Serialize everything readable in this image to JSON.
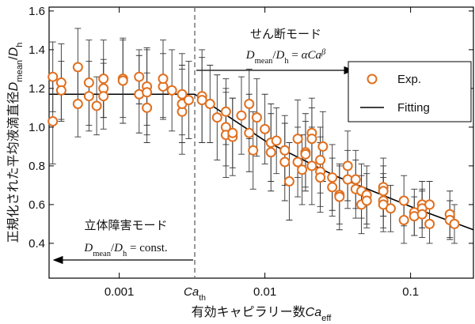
{
  "chart_data": {
    "type": "scatter",
    "xscale": "log",
    "xlim": [
      0.00033,
      0.27
    ],
    "xticks": [
      0.001,
      0.01,
      0.1
    ],
    "ylim": [
      0.22,
      1.62
    ],
    "yticks": [
      0.4,
      0.6,
      0.8,
      {
        "value": 1,
        "label": "1.0"
      },
      1.2,
      1.4,
      1.6
    ],
    "x_label": [
      {
        "t": "有効キャピラリー数"
      },
      {
        "t": "Ca",
        "italic": true
      },
      {
        "t": "eff",
        "sub": true
      }
    ],
    "y_label": [
      {
        "t": "正規化された平均液滴直径"
      },
      {
        "t": "D",
        "italic": true
      },
      {
        "t": "mean",
        "sub": true
      },
      {
        "t": "/"
      },
      {
        "t": "D",
        "italic": true
      },
      {
        "t": "h",
        "sub": true
      }
    ],
    "threshold": {
      "value": 0.0033,
      "label": [
        {
          "t": "Ca",
          "italic": true
        },
        {
          "t": "th",
          "sub": true
        }
      ]
    },
    "annotations": [
      {
        "text": "せん断モード",
        "formula": [
          {
            "t": "D",
            "italic": true
          },
          {
            "t": "mean",
            "sub": true
          },
          {
            "t": "/"
          },
          {
            "t": "D",
            "italic": true
          },
          {
            "t": "h",
            "sub": true
          },
          {
            "t": " = "
          },
          {
            "t": "αCa",
            "italic": true
          },
          {
            "t": "β",
            "sup": true,
            "italic": true
          }
        ],
        "arrow": "right"
      },
      {
        "text": "立体障害モード",
        "formula": [
          {
            "t": "D",
            "italic": true
          },
          {
            "t": "mean",
            "sub": true
          },
          {
            "t": "/"
          },
          {
            "t": "D",
            "italic": true
          },
          {
            "t": "h",
            "sub": true
          },
          {
            "t": " = const."
          }
        ],
        "arrow": "left"
      }
    ],
    "legend": "upper right",
    "series": [
      {
        "name": "Exp.",
        "kind": "points",
        "color": "#e07020",
        "x": [
          0.00035,
          0.00035,
          0.0004,
          0.0004,
          0.00052,
          0.00052,
          0.00062,
          0.00062,
          0.0007,
          0.00078,
          0.00078,
          0.00078,
          0.00106,
          0.00106,
          0.00137,
          0.00137,
          0.00155,
          0.00155,
          0.00155,
          0.002,
          0.002,
          0.0023,
          0.0027,
          0.0027,
          0.0027,
          0.003,
          0.0037,
          0.0037,
          0.0042,
          0.0047,
          0.0054,
          0.0054,
          0.0054,
          0.006,
          0.006,
          0.0069,
          0.0078,
          0.0078,
          0.0083,
          0.0088,
          0.01,
          0.011,
          0.011,
          0.012,
          0.0137,
          0.0137,
          0.0147,
          0.0168,
          0.0168,
          0.018,
          0.019,
          0.019,
          0.021,
          0.021,
          0.021,
          0.024,
          0.024,
          0.024,
          0.025,
          0.029,
          0.029,
          0.0325,
          0.0325,
          0.037,
          0.037,
          0.042,
          0.042,
          0.046,
          0.046,
          0.05,
          0.05,
          0.065,
          0.065,
          0.065,
          0.065,
          0.073,
          0.09,
          0.09,
          0.106,
          0.106,
          0.12,
          0.12,
          0.12,
          0.135,
          0.135,
          0.186,
          0.186,
          0.2
        ],
        "values": [
          1.26,
          1.03,
          1.23,
          1.19,
          1.31,
          1.12,
          1.23,
          1.16,
          1.11,
          1.25,
          1.2,
          1.16,
          1.25,
          1.24,
          1.17,
          1.26,
          1.21,
          1.18,
          1.1,
          1.21,
          1.25,
          1.19,
          1.17,
          1.08,
          1.12,
          1.14,
          1.16,
          1.14,
          1.12,
          1.05,
          1,
          0.96,
          1.08,
          0.95,
          0.97,
          1.06,
          0.97,
          1.12,
          0.88,
          1.05,
          0.99,
          0.92,
          0.87,
          0.93,
          0.88,
          0.82,
          0.72,
          0.82,
          0.94,
          0.78,
          0.87,
          0.86,
          0.97,
          0.94,
          0.8,
          0.83,
          0.77,
          0.74,
          0.9,
          0.69,
          0.74,
          0.65,
          0.64,
          0.8,
          0.73,
          0.73,
          0.68,
          0.67,
          0.6,
          0.65,
          0.62,
          0.69,
          0.62,
          0.67,
          0.6,
          0.58,
          0.62,
          0.52,
          0.56,
          0.54,
          0.6,
          0.58,
          0.55,
          0.6,
          0.5,
          0.55,
          0.52,
          0.5
        ],
        "errors": [
          0.18,
          0.22,
          0.2,
          0.15,
          0.2,
          0.17,
          0.22,
          0.18,
          0.15,
          0.2,
          0.15,
          0.17,
          0.2,
          0.22,
          0.2,
          0.14,
          0.2,
          0.22,
          0.18,
          0.17,
          0.2,
          0.21,
          0.21,
          0.22,
          0.2,
          0.2,
          0.24,
          0.22,
          0.2,
          0.22,
          0.2,
          0.22,
          0.17,
          0.2,
          0.18,
          0.2,
          0.2,
          0.18,
          0.2,
          0.2,
          0.18,
          0.2,
          0.2,
          0.17,
          0.18,
          0.2,
          0.2,
          0.18,
          0.2,
          0.18,
          0.2,
          0.17,
          0.18,
          0.16,
          0.2,
          0.17,
          0.18,
          0.18,
          0.18,
          0.15,
          0.17,
          0.15,
          0.17,
          0.18,
          0.15,
          0.15,
          0.15,
          0.14,
          0.15,
          0.15,
          0.14,
          0.15,
          0.14,
          0.13,
          0.14,
          0.12,
          0.13,
          0.12,
          0.12,
          0.1,
          0.12,
          0.1,
          0.12,
          0.12,
          0.1,
          0.12,
          0.1,
          0.1
        ]
      },
      {
        "name": "Fitting",
        "kind": "line",
        "color": "#000000",
        "x": [
          0.00033,
          0.0033,
          0.01,
          0.03,
          0.1,
          0.27
        ],
        "values": [
          1.17,
          1.17,
          0.93,
          0.75,
          0.59,
          0.47
        ]
      }
    ]
  }
}
